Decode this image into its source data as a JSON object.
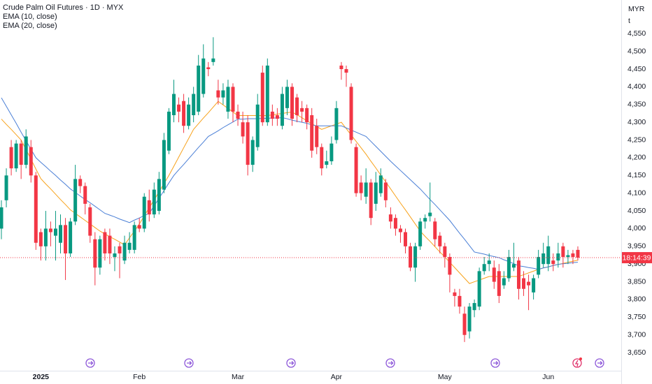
{
  "chart_data": {
    "type": "candlestick",
    "title": "Crude Palm Oil Futures · 1D · MYX",
    "currency": "MYR",
    "unit": "t",
    "countdown": "18:14:39",
    "up_color": "#089981",
    "down_color": "#f23645",
    "grid": false,
    "ylim": [
      3599,
      4645
    ],
    "yticks": [
      {
        "value": 3650,
        "label": "3,650"
      },
      {
        "value": 3700,
        "label": "3,700"
      },
      {
        "value": 3750,
        "label": "3,750"
      },
      {
        "value": 3800,
        "label": "3,800"
      },
      {
        "value": 3850,
        "label": "3,850"
      },
      {
        "value": 3900,
        "label": "3,900"
      },
      {
        "value": 3950,
        "label": "3,950"
      },
      {
        "value": 4000,
        "label": "4,000"
      },
      {
        "value": 4050,
        "label": "4,050"
      },
      {
        "value": 4100,
        "label": "4,100"
      },
      {
        "value": 4150,
        "label": "4,150"
      },
      {
        "value": 4200,
        "label": "4,200"
      },
      {
        "value": 4250,
        "label": "4,250"
      },
      {
        "value": 4300,
        "label": "4,300"
      },
      {
        "value": 4350,
        "label": "4,350"
      },
      {
        "value": 4400,
        "label": "4,400"
      },
      {
        "value": 4450,
        "label": "4,450"
      },
      {
        "value": 4500,
        "label": "4,500"
      },
      {
        "value": 4550,
        "label": "4,550"
      }
    ],
    "categories": [
      null,
      null,
      null,
      null,
      null,
      null,
      null,
      null,
      "2025",
      null,
      null,
      null,
      null,
      null,
      null,
      null,
      null,
      null,
      null,
      null,
      null,
      null,
      null,
      null,
      null,
      null,
      null,
      null,
      "Feb",
      null,
      null,
      null,
      null,
      null,
      null,
      null,
      null,
      null,
      null,
      null,
      null,
      null,
      null,
      null,
      null,
      null,
      null,
      null,
      "Mar",
      null,
      null,
      null,
      null,
      null,
      null,
      null,
      null,
      null,
      null,
      null,
      null,
      null,
      null,
      null,
      null,
      null,
      null,
      null,
      "Apr",
      null,
      null,
      null,
      null,
      null,
      null,
      null,
      null,
      null,
      null,
      null,
      null,
      null,
      null,
      null,
      null,
      null,
      null,
      null,
      null,
      null,
      "May",
      null,
      null,
      null,
      null,
      null,
      null,
      null,
      null,
      null,
      null,
      null,
      null,
      null,
      null,
      null,
      null,
      null,
      null,
      null,
      null,
      "Jun",
      null,
      null,
      null,
      null,
      null,
      null
    ],
    "open": [
      4000,
      4080,
      4230,
      4170,
      4240,
      4180,
      4230,
      4150,
      3990,
      3950,
      4000,
      3980,
      3960,
      4010,
      3930,
      4020,
      4140,
      4120,
      4060,
      3970,
      3890,
      3990,
      3980,
      3920,
      3950,
      3910,
      3940,
      3940,
      4010,
      4000,
      4080,
      4040,
      4050,
      4110,
      4220,
      4320,
      4350,
      4360,
      4290,
      4320,
      4330,
      4380,
      4455,
      4470,
      4390,
      4370,
      4330,
      4400,
      4330,
      4300,
      4300,
      4180,
      4230,
      4440,
      4300,
      4330,
      4320,
      4290,
      4340,
      4400,
      4370,
      4340,
      4340,
      4320,
      4290,
      4230,
      4180,
      4190,
      4250,
      4460,
      4450,
      4400,
      4230,
      4130,
      4090,
      4130,
      4070,
      4100,
      4130,
      4040,
      4030,
      4000,
      3990,
      3950,
      3890,
      3950,
      4020,
      4035,
      4020,
      3980,
      3950,
      3920,
      3820,
      3810,
      3760,
      3710,
      3770,
      3780,
      3880,
      3900,
      3890,
      3880,
      3840,
      3860,
      3890,
      3910,
      3860,
      3850,
      3820,
      3870,
      3900,
      3900,
      3910,
      3910,
      3950,
      3920,
      3930,
      3940
    ],
    "high": [
      4080,
      4170,
      4250,
      4250,
      4250,
      4280,
      4250,
      4160,
      4000,
      4050,
      4020,
      4050,
      4040,
      4030,
      4030,
      4180,
      4150,
      4130,
      4070,
      3990,
      3980,
      4000,
      4000,
      3950,
      3960,
      3980,
      3990,
      4020,
      4030,
      4100,
      4110,
      4130,
      4160,
      4270,
      4340,
      4420,
      4370,
      4380,
      4370,
      4400,
      4490,
      4520,
      4470,
      4540,
      4420,
      4410,
      4420,
      4410,
      4350,
      4330,
      4320,
      4260,
      4380,
      4460,
      4480,
      4350,
      4340,
      4400,
      4420,
      4410,
      4380,
      4360,
      4350,
      4340,
      4310,
      4240,
      4220,
      4260,
      4360,
      4470,
      4460,
      4410,
      4240,
      4150,
      4170,
      4140,
      4160,
      4170,
      4140,
      4060,
      4040,
      4010,
      4000,
      3960,
      3960,
      4030,
      4040,
      4130,
      4030,
      3990,
      3960,
      3930,
      3830,
      3830,
      3780,
      3790,
      3800,
      3890,
      3920,
      3930,
      3910,
      3900,
      3880,
      3940,
      3960,
      3920,
      3880,
      3870,
      3870,
      3940,
      3960,
      3980,
      3930,
      3960,
      3960,
      3940,
      3940,
      3950
    ],
    "low": [
      3970,
      4060,
      4150,
      4160,
      4140,
      4170,
      4130,
      3940,
      3910,
      3910,
      3950,
      3910,
      3930,
      3855,
      3920,
      4010,
      4100,
      4040,
      3960,
      3840,
      3870,
      3910,
      3900,
      3880,
      3860,
      3900,
      3930,
      3930,
      3990,
      3990,
      4020,
      4030,
      4040,
      4100,
      4210,
      4300,
      4300,
      4270,
      4280,
      4300,
      4320,
      4370,
      4430,
      4460,
      4350,
      4350,
      4310,
      4300,
      4290,
      4240,
      4150,
      4160,
      4220,
      4290,
      4290,
      4290,
      4290,
      4280,
      4320,
      4290,
      4300,
      4300,
      4280,
      4200,
      4210,
      4150,
      4170,
      4180,
      4240,
      4420,
      4400,
      4240,
      4090,
      4080,
      4070,
      4010,
      4050,
      4090,
      4060,
      4000,
      3980,
      3960,
      3930,
      3880,
      3850,
      3940,
      4000,
      4020,
      3950,
      3930,
      3890,
      3820,
      3780,
      3760,
      3680,
      3690,
      3750,
      3770,
      3870,
      3880,
      3830,
      3790,
      3830,
      3850,
      3880,
      3800,
      3810,
      3770,
      3800,
      3860,
      3890,
      3880,
      3880,
      3890,
      3890,
      3900,
      3900,
      3910
    ],
    "close": [
      4060,
      4150,
      4170,
      4240,
      4180,
      4260,
      4150,
      3960,
      3950,
      4000,
      3990,
      4000,
      4010,
      3930,
      4020,
      4140,
      4120,
      4070,
      3980,
      3890,
      3970,
      3930,
      3930,
      3930,
      3930,
      3960,
      3960,
      4010,
      4000,
      4090,
      4040,
      4110,
      4140,
      4250,
      4330,
      4380,
      4330,
      4290,
      4350,
      4380,
      4460,
      4480,
      4450,
      4480,
      4370,
      4390,
      4400,
      4330,
      4310,
      4260,
      4180,
      4250,
      4350,
      4300,
      4460,
      4310,
      4310,
      4380,
      4400,
      4310,
      4320,
      4330,
      4300,
      4220,
      4230,
      4170,
      4190,
      4240,
      4340,
      4450,
      4440,
      4250,
      4100,
      4100,
      4130,
      4030,
      4130,
      4150,
      4080,
      4020,
      4000,
      3990,
      3950,
      3890,
      3950,
      4020,
      4030,
      4045,
      3970,
      3950,
      3920,
      3870,
      3810,
      3780,
      3700,
      3780,
      3790,
      3880,
      3900,
      3910,
      3850,
      3810,
      3860,
      3920,
      3900,
      3830,
      3830,
      3840,
      3860,
      3920,
      3930,
      3950,
      3900,
      3930,
      3920,
      3925,
      3920,
      3918
    ],
    "series": [
      {
        "name": "EMA (10, close)",
        "color": "#f7a21b",
        "values": [
          4309,
          4294,
          4280,
          4265,
          4250,
          4223,
          4196,
          4168,
          4141,
          4126,
          4112,
          4097,
          4082,
          4068,
          4053,
          4043,
          4033,
          4023,
          4013,
          4003,
          3993,
          3985,
          3977,
          3970,
          3962,
          3954,
          3974,
          3993,
          4013,
          4036,
          4059,
          4081,
          4104,
          4127,
          4150,
          4176,
          4202,
          4228,
          4254,
          4280,
          4296,
          4312,
          4327,
          4343,
          4359,
          4349,
          4339,
          4329,
          4319,
          4319,
          4319,
          4319,
          4319,
          4319,
          4319,
          4321,
          4323,
          4325,
          4327,
          4329,
          4321,
          4313,
          4304,
          4296,
          4288,
          4280,
          4285,
          4290,
          4295,
          4300,
          4282,
          4264,
          4246,
          4228,
          4210,
          4190,
          4171,
          4151,
          4132,
          4112,
          4092,
          4072,
          4053,
          4033,
          4013,
          3993,
          3978,
          3964,
          3949,
          3934,
          3920,
          3905,
          3890,
          3875,
          3860,
          3845,
          3850,
          3855,
          3860,
          3865,
          3865,
          3865,
          3865,
          3865,
          3865,
          3865,
          3870,
          3875,
          3880,
          3885,
          3889,
          3892,
          3896,
          3899,
          3902,
          3905,
          3908,
          3911
        ]
      },
      {
        "name": "EMA (20, close)",
        "color": "#4a7fd6",
        "values": [
          4369,
          4345,
          4321,
          4297,
          4272,
          4248,
          4224,
          4200,
          4187,
          4175,
          4162,
          4150,
          4137,
          4125,
          4112,
          4102,
          4092,
          4082,
          4073,
          4063,
          4053,
          4043,
          4038,
          4033,
          4027,
          4022,
          4017,
          4024,
          4030,
          4037,
          4043,
          4064,
          4086,
          4107,
          4129,
          4150,
          4166,
          4181,
          4197,
          4213,
          4229,
          4244,
          4260,
          4268,
          4276,
          4285,
          4293,
          4301,
          4309,
          4309,
          4310,
          4310,
          4310,
          4311,
          4311,
          4312,
          4312,
          4313,
          4310,
          4306,
          4303,
          4300,
          4297,
          4293,
          4290,
          4290,
          4290,
          4290,
          4290,
          4290,
          4284,
          4278,
          4272,
          4266,
          4260,
          4246,
          4232,
          4218,
          4204,
          4190,
          4177,
          4164,
          4151,
          4138,
          4125,
          4112,
          4097,
          4082,
          4068,
          4053,
          4038,
          4023,
          4005,
          3987,
          3970,
          3952,
          3934,
          3931,
          3928,
          3924,
          3921,
          3918,
          3912,
          3907,
          3901,
          3895,
          3893,
          3890,
          3888,
          3885,
          3889,
          3892,
          3896,
          3899,
          3901,
          3902,
          3904,
          3905
        ]
      }
    ]
  }
}
